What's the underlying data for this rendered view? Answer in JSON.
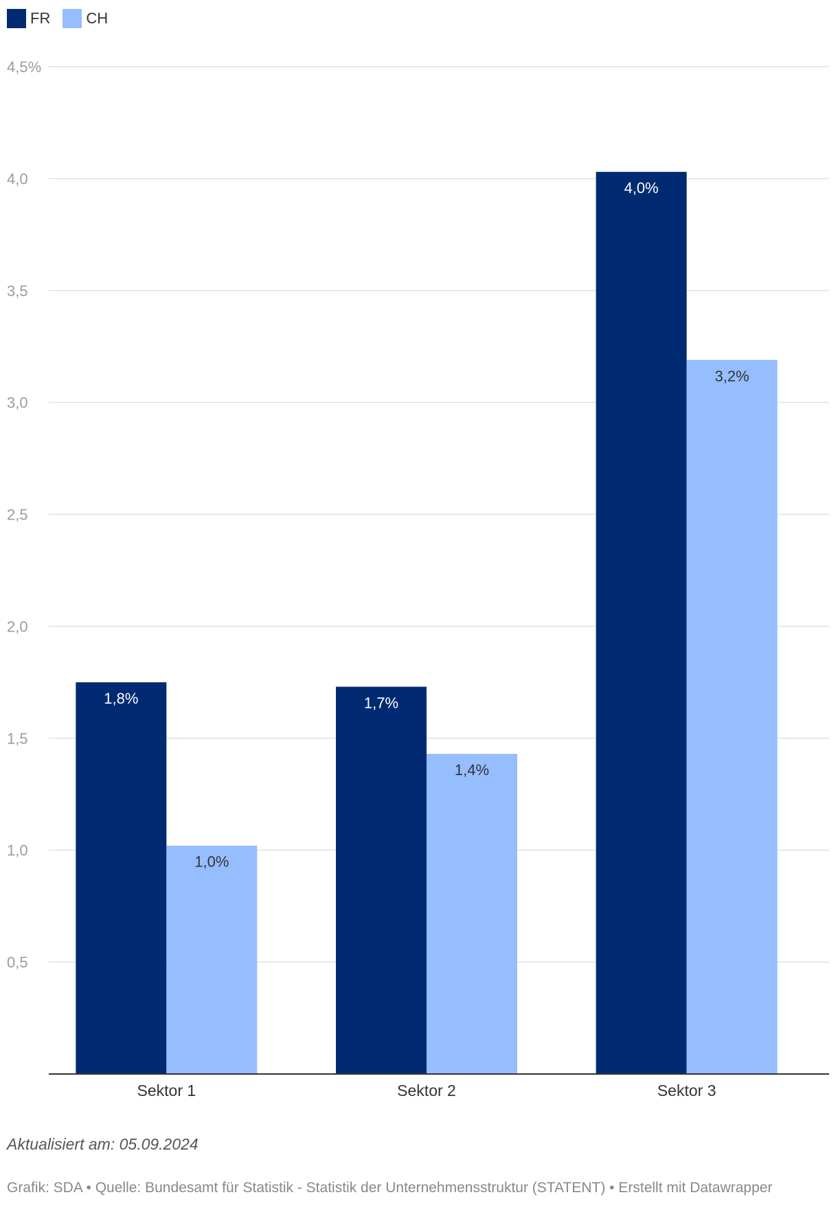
{
  "chart_data": {
    "type": "bar",
    "categories": [
      "Sektor 1",
      "Sektor 2",
      "Sektor 3"
    ],
    "series": [
      {
        "name": "FR",
        "color": "#002b73",
        "values": [
          1.75,
          1.73,
          4.03
        ],
        "labels": [
          "1,8%",
          "1,7%",
          "4,0%"
        ],
        "label_color": "#ffffff"
      },
      {
        "name": "CH",
        "color": "#96bdfd",
        "values": [
          1.02,
          1.43,
          3.19
        ],
        "labels": [
          "1,0%",
          "1,4%",
          "3,2%"
        ],
        "label_color": "#333333"
      }
    ],
    "y_ticks": [
      {
        "value": 0.5,
        "label": "0,5"
      },
      {
        "value": 1.0,
        "label": "1,0"
      },
      {
        "value": 1.5,
        "label": "1,5"
      },
      {
        "value": 2.0,
        "label": "2,0"
      },
      {
        "value": 2.5,
        "label": "2,5"
      },
      {
        "value": 3.0,
        "label": "3,0"
      },
      {
        "value": 3.5,
        "label": "3,5"
      },
      {
        "value": 4.0,
        "label": "4,0"
      },
      {
        "value": 4.5,
        "label": "4,5%"
      }
    ],
    "ylim": [
      0,
      4.5
    ],
    "grid": true,
    "legend_position": "top-left"
  },
  "notes": {
    "updated": "Aktualisiert am: 05.09.2024",
    "footer": "Grafik: SDA • Quelle: Bundesamt für Statistik - Statistik der Unternehmensstruktur (STATENT) • Erstellt mit Datawrapper"
  }
}
